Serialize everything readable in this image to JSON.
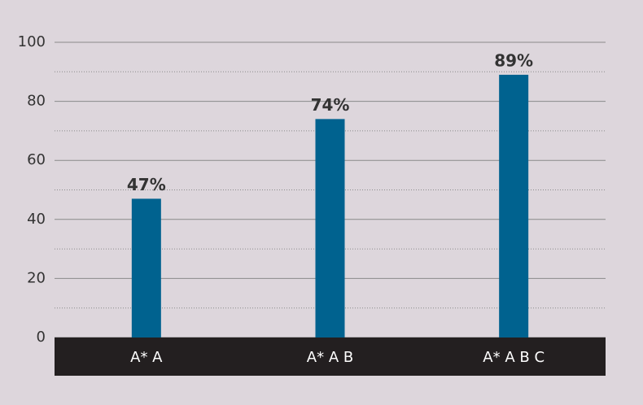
{
  "chart_data": {
    "type": "bar",
    "categories": [
      "A* A",
      "A* A B",
      "A* A B C"
    ],
    "values": [
      47,
      74,
      89
    ],
    "value_labels": [
      "47%",
      "74%",
      "89%"
    ],
    "color": "#00628f",
    "ylim": [
      0,
      100
    ],
    "yticks": [
      0,
      20,
      40,
      60,
      80,
      100
    ],
    "minor_yticks": [
      10,
      30,
      50,
      70,
      90
    ],
    "grid": true
  }
}
